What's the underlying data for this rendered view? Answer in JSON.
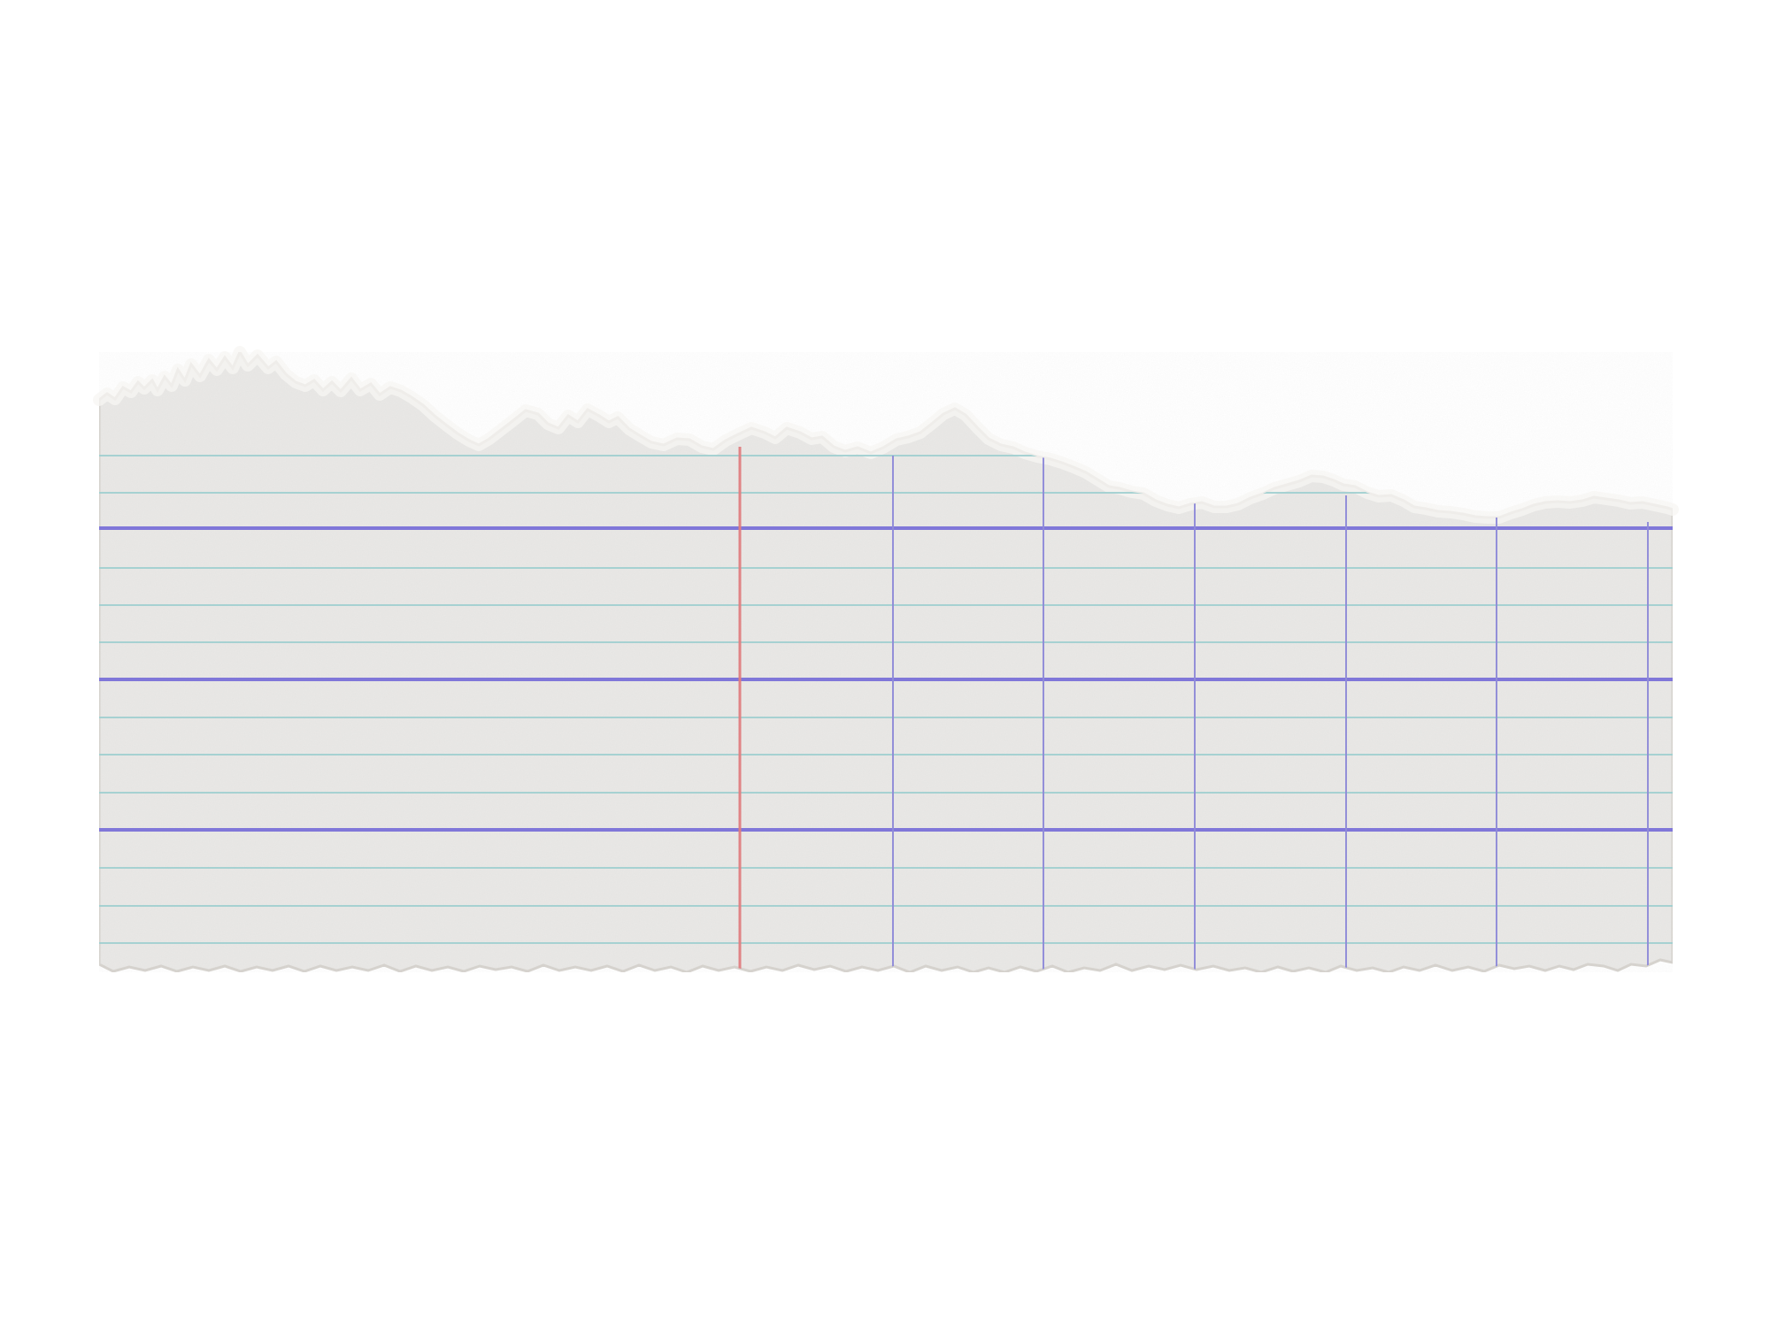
{
  "image": {
    "subject": "torn-ruled-paper-strip",
    "background_color": "#ffffff"
  },
  "paper": {
    "fill_color": "#e9e8e6",
    "edge_color": "#d7d4cf",
    "fiber_color": "#f7f6f3",
    "rule_color": "#9fcfd0",
    "bold_rule_color": "#7b72d9",
    "margin_line_color": "#e07e80",
    "column_line_color": "#8f8bd8",
    "feature_names": [
      "torn-top-edge",
      "torn-bottom-edge",
      "ruled-lines",
      "bold-grid-lines",
      "red-margin-line",
      "purple-column-lines"
    ]
  }
}
